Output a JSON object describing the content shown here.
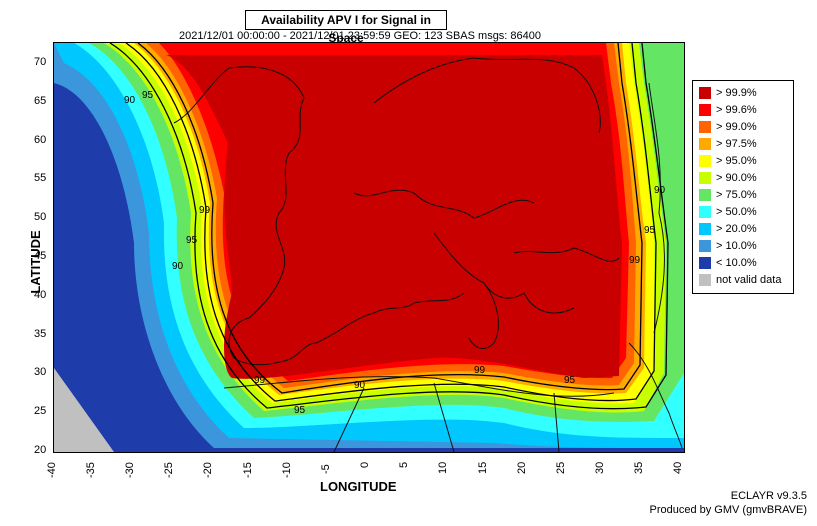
{
  "title": "Availability APV I for Signal in Space",
  "subtitle": "2021/12/01 00:00:00 - 2021/12/01 23:59:59  GEO: 123  SBAS  msgs: 86400",
  "axes": {
    "ylabel": "LATITUDE",
    "xlabel": "LONGITUDE",
    "lat_ticks": [
      "70",
      "65",
      "60",
      "55",
      "50",
      "45",
      "40",
      "35",
      "30",
      "25",
      "20"
    ],
    "lon_ticks": [
      "-40",
      "-35",
      "-30",
      "-25",
      "-20",
      "-15",
      "-10",
      "-5",
      "0",
      "5",
      "10",
      "15",
      "20",
      "25",
      "30",
      "35",
      "40"
    ]
  },
  "legend": [
    {
      "label": "> 99.9%",
      "color": "#c80000"
    },
    {
      "label": "> 99.6%",
      "color": "#ff0000"
    },
    {
      "label": "> 99.0%",
      "color": "#ff6400"
    },
    {
      "label": "> 97.5%",
      "color": "#ffaa00"
    },
    {
      "label": "> 95.0%",
      "color": "#ffff00"
    },
    {
      "label": "> 90.0%",
      "color": "#c8ff00"
    },
    {
      "label": "> 75.0%",
      "color": "#64e664"
    },
    {
      "label": "> 50.0%",
      "color": "#32ffff"
    },
    {
      "label": "> 20.0%",
      "color": "#00c8ff"
    },
    {
      "label": "> 10.0%",
      "color": "#3c96dc"
    },
    {
      "label": "< 10.0%",
      "color": "#1e3caa"
    },
    {
      "label": "not valid data",
      "color": "#c0c0c0"
    }
  ],
  "contour_labels": [
    "99",
    "95",
    "90"
  ],
  "footer": {
    "line1": "ECLAYR v9.3.5",
    "line2": "Produced by GMV (gmvBRAVE)"
  }
}
